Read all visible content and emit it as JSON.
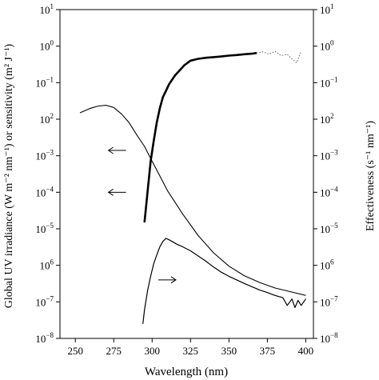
{
  "chart_data": {
    "type": "line",
    "xlabel": "Wavelength (nm)",
    "ylabel_left": "Global UV irradiance (W m⁻² nm⁻¹) or sensitivity (m² J⁻¹)",
    "ylabel_right": "Effectiveness (s⁻¹ nm⁻¹)",
    "xlim": [
      240,
      405
    ],
    "ylim": [
      1e-08,
      10
    ],
    "yscale": "log",
    "grid": false,
    "x_ticks": [
      "250",
      "275",
      "300",
      "325",
      "350",
      "375",
      "400"
    ],
    "y_ticks_left": [
      {
        "base": "10",
        "exp": "1"
      },
      {
        "base": "10",
        "exp": "0"
      },
      {
        "base": "10",
        "exp": "−1"
      },
      {
        "base": "10",
        "exp": "2"
      },
      {
        "base": "10",
        "exp": "−3"
      },
      {
        "base": "10",
        "exp": "−4"
      },
      {
        "base": "10",
        "exp": "−5"
      },
      {
        "base": "10",
        "exp": "6"
      },
      {
        "base": "10",
        "exp": "−7"
      },
      {
        "base": "10",
        "exp": "−8"
      }
    ],
    "y_ticks_right": [
      {
        "base": "10",
        "exp": "1"
      },
      {
        "base": "10",
        "exp": "0"
      },
      {
        "base": "10",
        "exp": "−1"
      },
      {
        "base": "10",
        "exp": "2"
      },
      {
        "base": "10",
        "exp": "−3"
      },
      {
        "base": "10",
        "exp": "−4"
      },
      {
        "base": "10",
        "exp": "−5"
      },
      {
        "base": "10",
        "exp": "6"
      },
      {
        "base": "10",
        "exp": "−7"
      },
      {
        "base": "10",
        "exp": "−8"
      }
    ],
    "series": [
      {
        "style": "thin",
        "x": [
          253,
          260,
          265,
          270,
          275,
          280,
          285,
          290,
          295,
          300,
          305,
          310,
          320,
          330,
          340,
          350,
          360,
          370,
          380,
          390,
          400
        ],
        "y": [
          0.015,
          0.02,
          0.023,
          0.024,
          0.021,
          0.014,
          0.008,
          0.0037,
          0.0018,
          0.0007,
          0.00028,
          0.00011,
          2.5e-05,
          6.5e-06,
          2.2e-06,
          9.5e-07,
          5.2e-07,
          3.4e-07,
          2.4e-07,
          1.9e-07,
          1.5e-07
        ]
      },
      {
        "style": "thick",
        "x": [
          295,
          297,
          299,
          301,
          303,
          305,
          307,
          309,
          311,
          313,
          315,
          318,
          321,
          325,
          330,
          335,
          340,
          345,
          350,
          355,
          360,
          365,
          368
        ],
        "y": [
          1.5e-05,
          0.0001,
          0.0007,
          0.0025,
          0.008,
          0.02,
          0.04,
          0.06,
          0.09,
          0.12,
          0.16,
          0.22,
          0.3,
          0.4,
          0.45,
          0.48,
          0.5,
          0.52,
          0.55,
          0.57,
          0.6,
          0.62,
          0.65
        ]
      },
      {
        "style": "dotted",
        "x": [
          368,
          372,
          376,
          380,
          384,
          388,
          391,
          394,
          397
        ],
        "y": [
          0.65,
          0.7,
          0.6,
          0.72,
          0.55,
          0.6,
          0.45,
          0.35,
          0.7
        ]
      },
      {
        "style": "medium",
        "x": [
          294,
          295,
          297,
          299,
          301,
          303,
          305,
          307,
          309,
          311,
          313,
          316,
          320,
          325,
          330,
          335,
          340,
          345,
          350,
          355,
          360,
          365,
          370,
          375,
          380,
          385,
          388,
          391,
          393,
          395,
          397,
          400
        ],
        "y": [
          2.5e-08,
          6e-08,
          2e-07,
          5e-07,
          1.1e-06,
          1.9e-06,
          3.2e-06,
          4.5e-06,
          5.5e-06,
          5e-06,
          4.5e-06,
          3.8e-06,
          3.2e-06,
          2.5e-06,
          1.8e-06,
          1.3e-06,
          9e-07,
          6.5e-07,
          5e-07,
          4e-07,
          3.2e-07,
          2.6e-07,
          2.1e-07,
          1.8e-07,
          1.5e-07,
          1.3e-07,
          8e-08,
          1.2e-07,
          7e-08,
          1.1e-07,
          8e-08,
          1.2e-07
        ]
      }
    ],
    "arrows": [
      {
        "x": 283,
        "y": 0.0014,
        "direction": "left"
      },
      {
        "x": 283,
        "y": 0.0001,
        "direction": "left"
      },
      {
        "x": 304,
        "y": 4e-07,
        "direction": "right"
      }
    ]
  }
}
